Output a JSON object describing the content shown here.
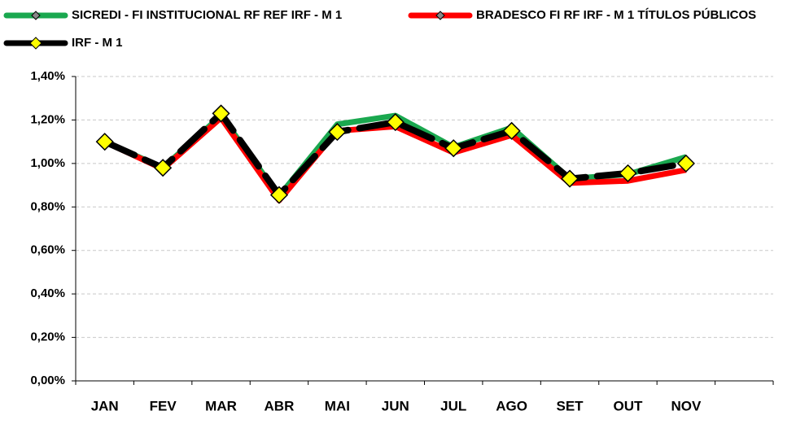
{
  "chart_data": {
    "type": "line",
    "categories": [
      "JAN",
      "FEV",
      "MAR",
      "ABR",
      "MAI",
      "JUN",
      "JUL",
      "AGO",
      "SET",
      "OUT",
      "NOV",
      null
    ],
    "series": [
      {
        "name": "SICREDI - FI INSTITUCIONAL RF REF IRF - M 1",
        "color": "#1aa84f",
        "values": [
          1.1,
          0.98,
          1.22,
          0.85,
          1.18,
          1.22,
          1.075,
          1.165,
          0.93,
          0.95,
          1.03,
          null
        ]
      },
      {
        "name": "BRADESCO FI RF IRF - M 1 TÍTULOS PÚBLICOS",
        "color": "#ff0000",
        "values": [
          1.1,
          0.975,
          1.21,
          0.83,
          1.15,
          1.17,
          1.05,
          1.13,
          0.91,
          0.92,
          0.97,
          null
        ]
      },
      {
        "name": "IRF - M 1",
        "color": "#000000",
        "marker_color": "#ffff00",
        "values": [
          1.1,
          0.98,
          1.23,
          0.855,
          1.145,
          1.19,
          1.07,
          1.15,
          0.93,
          0.955,
          1.0,
          null
        ]
      }
    ],
    "ylim": [
      0,
      1.4
    ],
    "yticks": [
      {
        "value": 0,
        "label": "0,00%"
      },
      {
        "value": 0.2,
        "label": "0,20%"
      },
      {
        "value": 0.4,
        "label": "0,40%"
      },
      {
        "value": 0.6,
        "label": "0,60%"
      },
      {
        "value": 0.8,
        "label": "0,80%"
      },
      {
        "value": 1.0,
        "label": "1,00%"
      },
      {
        "value": 1.2,
        "label": "1,20%"
      },
      {
        "value": 1.4,
        "label": "1,40%"
      }
    ],
    "grid": true,
    "legend": "top"
  }
}
